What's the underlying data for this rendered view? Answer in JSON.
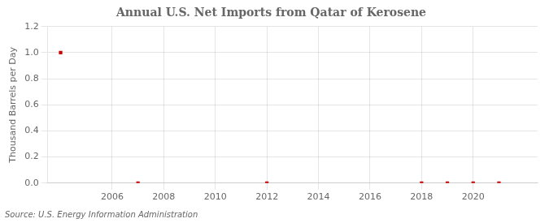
{
  "chart_data": {
    "type": "scatter",
    "title": "Annual U.S. Net Imports from Qatar of Kerosene",
    "ylabel": "Thousand Barrels per Day",
    "annotation": "Source: U.S. Energy Information Administration",
    "x": [
      2004,
      2007,
      2012,
      2018,
      2019,
      2020,
      2021
    ],
    "values": [
      1.0,
      0.0,
      0.0,
      0.0,
      0.0,
      0.0,
      0.0
    ],
    "color": "#cc0000",
    "marker": "square",
    "xlim": [
      2003.5,
      2022.5
    ],
    "xticks": [
      2006,
      2008,
      2010,
      2012,
      2014,
      2016,
      2018,
      2020
    ],
    "ylim": [
      0.0,
      1.2
    ],
    "yticks": [
      {
        "value": 0.0,
        "label": "0.0"
      },
      0.2,
      0.4,
      0.6,
      0.8,
      {
        "value": 1.0,
        "label": "1.0"
      },
      1.2
    ],
    "grid": true
  }
}
